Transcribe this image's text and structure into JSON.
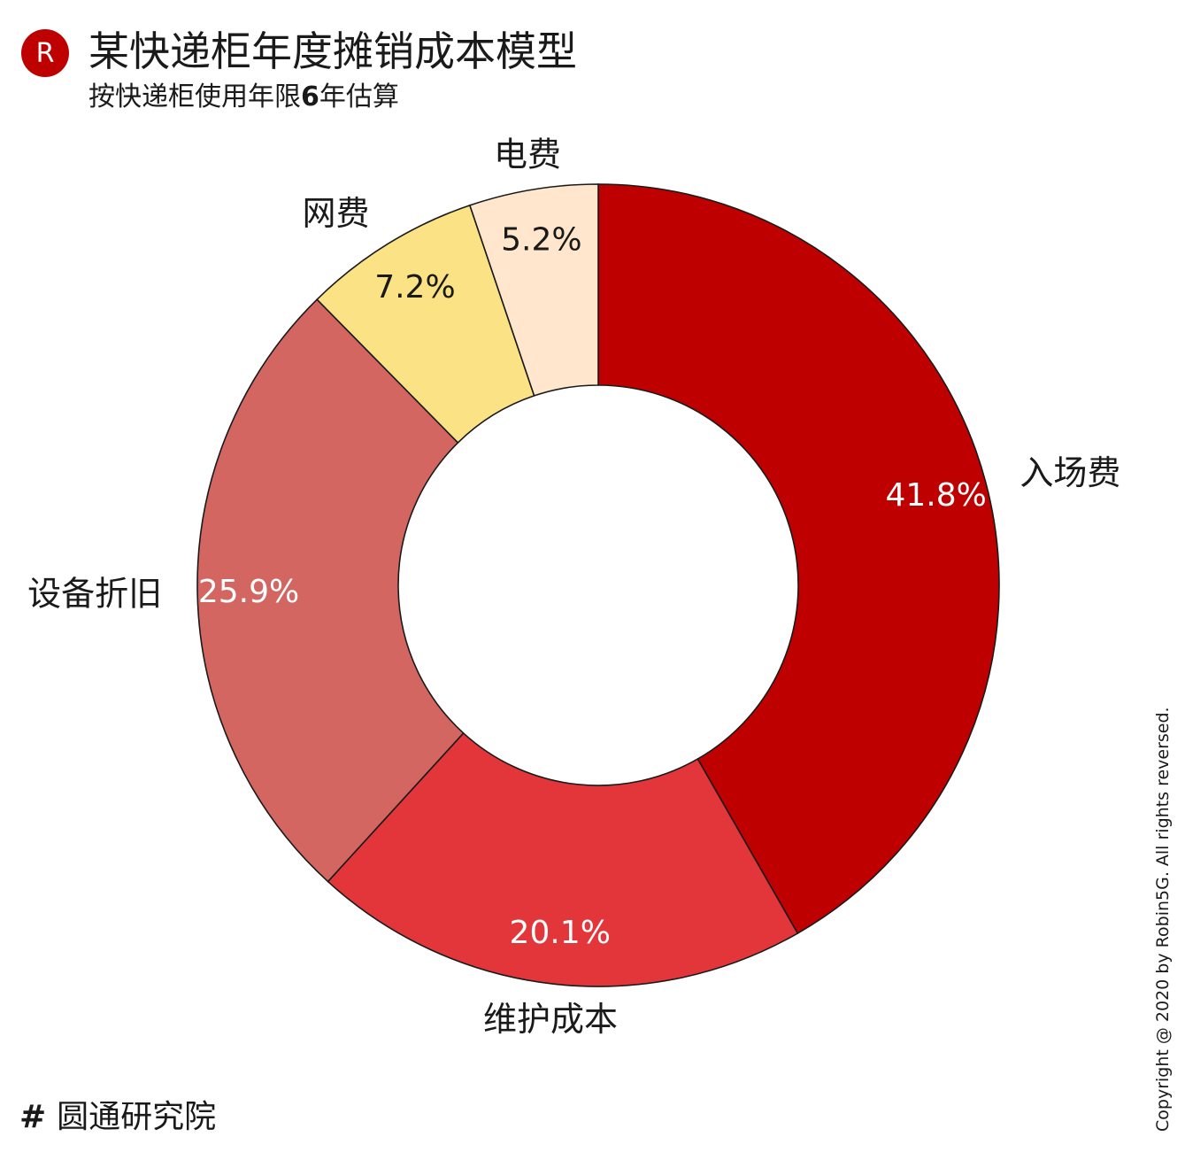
{
  "logo": {
    "letter": "R"
  },
  "title": "某快递柜年度摊销成本模型",
  "subtitle": {
    "prefix": "按快递柜使用年限",
    "emphasis": "6",
    "suffix": "年估算"
  },
  "footer": {
    "hash": "#",
    "label": "圆通研究院"
  },
  "copyright": "Copyright @ 2020 by Robin5G. All rights reversed.",
  "chart_data": {
    "type": "pie",
    "variant": "donut",
    "title": "",
    "categories": [
      "入场费",
      "维护成本",
      "设备折旧",
      "网费",
      "电费"
    ],
    "values": [
      41.8,
      20.1,
      25.9,
      7.2,
      5.2
    ],
    "value_labels": [
      "41.8%",
      "20.1%",
      "25.9%",
      "7.2%",
      "5.2%"
    ],
    "colors": [
      "#bf0000",
      "#e3363a",
      "#d36661",
      "#fbe285",
      "#ffe6cc"
    ],
    "value_label_colors": [
      "#ffffff",
      "#ffffff",
      "#ffffff",
      "#1a1a1a",
      "#1a1a1a"
    ],
    "start": "top",
    "direction": "clockwise",
    "stroke_color": "#1a1a1a",
    "legend": "none"
  }
}
